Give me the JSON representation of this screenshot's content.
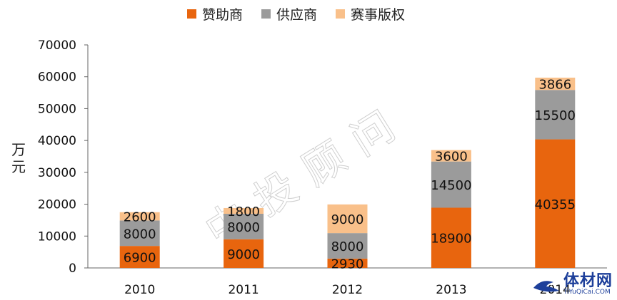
{
  "chart_data": {
    "type": "bar",
    "stacked": true,
    "categories": [
      "2010",
      "2011",
      "2012",
      "2013",
      "2014"
    ],
    "series": [
      {
        "name": "赞助商",
        "values": [
          6900,
          9000,
          2930,
          18900,
          40355
        ],
        "color": "#e8650e"
      },
      {
        "name": "供应商",
        "values": [
          8000,
          8000,
          8000,
          14500,
          15500
        ],
        "color": "#9b9b9b"
      },
      {
        "name": "赛事版权",
        "values": [
          2600,
          1800,
          9000,
          3600,
          3866
        ],
        "color": "#f9c08a"
      }
    ],
    "ylabel": "万元",
    "ylim": [
      0,
      70000
    ],
    "yticks": [
      "0",
      "10000",
      "20000",
      "30000",
      "40000",
      "50000",
      "60000",
      "70000"
    ],
    "grid": false,
    "legend_position": "top"
  },
  "watermark": "中投顾问",
  "logo": {
    "name": "体材网",
    "url": "TiYuQiCai.COM"
  }
}
